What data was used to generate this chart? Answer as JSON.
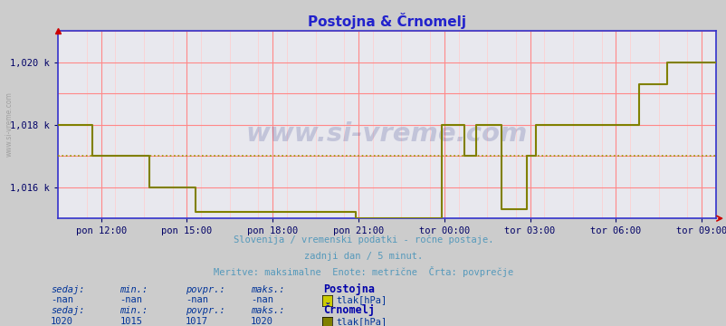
{
  "title": "Postojna & Črnomelj",
  "bg_color": "#cccccc",
  "plot_bg_color": "#e8e8ee",
  "grid_color_major": "#ff8888",
  "grid_color_minor": "#ffcccc",
  "line_color": "#808000",
  "avg_line_color": "#999900",
  "axis_color": "#3333cc",
  "tick_label_color": "#000066",
  "subtitle_color": "#5599bb",
  "y_min": 1015.0,
  "y_max": 1021.0,
  "y_ticks": [
    1016,
    1018,
    1020
  ],
  "y_tick_labels": [
    "1,016 k",
    "1,018 k",
    "1,020 k"
  ],
  "x_tick_labels": [
    "pon 12:00",
    "pon 15:00",
    "pon 18:00",
    "pon 21:00",
    "tor 00:00",
    "tor 03:00",
    "tor 06:00",
    "tor 09:00"
  ],
  "subtitle_lines": [
    "Slovenija / vremenski podatki - ročne postaje.",
    "zadnji dan / 5 minut.",
    "Meritve: maksimalne  Enote: metrične  Črta: povprečje"
  ],
  "station1_name": "Postojna",
  "station1_sedaj": "-nan",
  "station1_min": "-nan",
  "station1_povpr": "-nan",
  "station1_maks": "-nan",
  "station1_unit": "tlak[hPa]",
  "station2_name": "Črnomelj",
  "station2_sedaj": "1020",
  "station2_min": "1015",
  "station2_povpr": "1017",
  "station2_maks": "1020",
  "station2_unit": "tlak[hPa]",
  "avg_value": 1017.0,
  "watermark": "www.si-vreme.com",
  "watermark_color": "#1a237e",
  "watermark_alpha": 0.18,
  "legend_color": "#cccc00",
  "legend2_color": "#808000",
  "left_text": "www.si-vreme.com",
  "left_text_color": "#999999"
}
